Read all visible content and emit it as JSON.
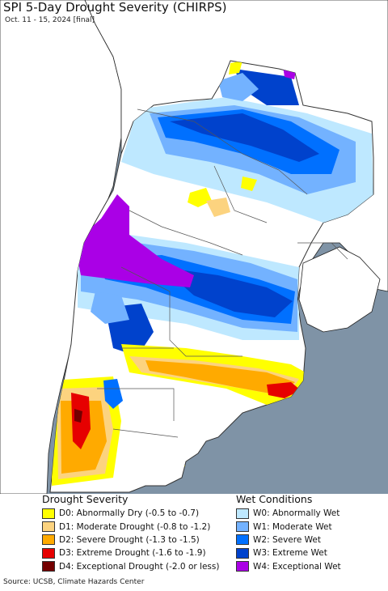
{
  "map": {
    "title": "SPI 5-Day Drought Severity (CHIRPS)",
    "subtitle": "Oct. 11 - 15, 2024 [final]",
    "colors": {
      "ocean": "#7f93a6",
      "neighbor_land": "#ffffff",
      "neighbor_border": "#222222",
      "border": "#444444"
    }
  },
  "legend": {
    "drought": {
      "heading": "Drought Severity",
      "items": [
        {
          "label": "D0: Abnormally Dry (-0.5 to -0.7)",
          "color": "#ffff00"
        },
        {
          "label": "D1: Moderate Drought (-0.8 to -1.2)",
          "color": "#fcd37f"
        },
        {
          "label": "D2: Severe Drought (-1.3 to -1.5)",
          "color": "#ffaa00"
        },
        {
          "label": "D3: Extreme Drought (-1.6 to -1.9)",
          "color": "#e60000"
        },
        {
          "label": "D4: Exceptional Drought (-2.0 or less)",
          "color": "#730000"
        }
      ]
    },
    "wet": {
      "heading": "Wet Conditions",
      "items": [
        {
          "label": "W0: Abnormally Wet",
          "color": "#bee8ff"
        },
        {
          "label": "W1: Moderate Wet",
          "color": "#73b2ff"
        },
        {
          "label": "W2: Severe Wet",
          "color": "#0070ff"
        },
        {
          "label": "W3: Extreme Wet",
          "color": "#0042cc"
        },
        {
          "label": "W4: Exceptional Wet",
          "color": "#aa00e6"
        }
      ]
    }
  },
  "source": "Source: UCSB, Climate Hazards Center"
}
